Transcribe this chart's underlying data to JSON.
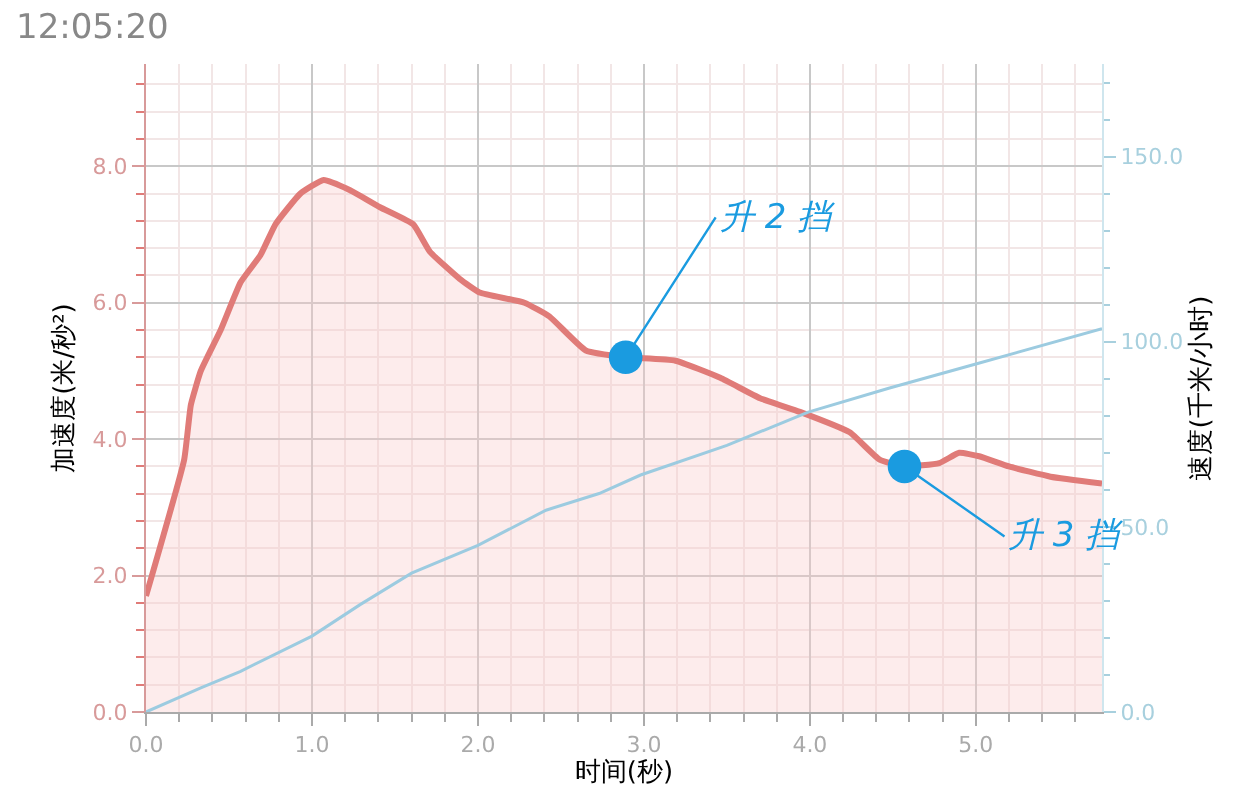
{
  "chart_data": {
    "type": "area",
    "xlabel": "时间(秒)",
    "ylabel": "加速度(米/秒²)",
    "y2label": "速度(千米/小时)",
    "xlim": [
      0,
      5.76
    ],
    "xticks": [
      {
        "value": 0,
        "label": "0.0"
      },
      {
        "value": 1,
        "label": "1.0"
      },
      {
        "value": 2,
        "label": "2.0"
      },
      {
        "value": 3,
        "label": "3.0"
      },
      {
        "value": 4,
        "label": "4.0"
      },
      {
        "value": 5,
        "label": "5.0"
      }
    ],
    "ylim": [
      0,
      9.5
    ],
    "yticks": [
      {
        "value": 0,
        "label": "0.0"
      },
      {
        "value": 2,
        "label": "2.0"
      },
      {
        "value": 4,
        "label": "4.0"
      },
      {
        "value": 6,
        "label": "6.0"
      },
      {
        "value": 8,
        "label": "8.0"
      }
    ],
    "y2lim": [
      0,
      175
    ],
    "y2ticks": [
      {
        "value": 0,
        "label": "0.0"
      },
      {
        "value": 50,
        "label": "50.0"
      },
      {
        "value": 100,
        "label": "100.0"
      },
      {
        "value": 150,
        "label": "150.0"
      }
    ],
    "grid": true,
    "marker": "none",
    "line_style": "solid",
    "series": [
      {
        "color": "#e07b78",
        "x": [
          0,
          0.23,
          0.27,
          0.33,
          0.45,
          0.57,
          0.69,
          0.78,
          0.93,
          1.07,
          1.23,
          1.41,
          1.61,
          1.71,
          1.89,
          2.01,
          2.28,
          2.43,
          2.65,
          2.89,
          3.19,
          3.46,
          3.7,
          3.94,
          4.24,
          4.42,
          4.57,
          4.78,
          4.9,
          5.02,
          5.2,
          5.45,
          5.76
        ],
        "values": [
          1.7,
          3.7,
          4.5,
          5.0,
          5.6,
          6.3,
          6.7,
          7.15,
          7.6,
          7.8,
          7.65,
          7.4,
          7.15,
          6.75,
          6.35,
          6.15,
          6.0,
          5.8,
          5.3,
          5.2,
          5.15,
          4.9,
          4.6,
          4.4,
          4.1,
          3.7,
          3.6,
          3.65,
          3.8,
          3.75,
          3.6,
          3.45,
          3.35
        ]
      },
      {
        "type": "line",
        "axis": "y2",
        "color": "#9ccbe0",
        "x": [
          0,
          0.33,
          0.57,
          1.0,
          1.29,
          1.6,
          2.0,
          2.41,
          2.73,
          2.98,
          3.5,
          3.99,
          4.48,
          5.0,
          5.76
        ],
        "values": [
          0,
          6.5,
          11,
          20.5,
          29,
          37.5,
          45,
          54.5,
          59,
          64,
          72,
          81,
          87.5,
          94,
          103.5
        ]
      }
    ],
    "annotations": [
      "12:05:20",
      {
        "text": "升 2 挡",
        "x": 2.89,
        "y": 5.2
      },
      {
        "text": "升 3 挡",
        "x": 4.57,
        "y": 3.6
      }
    ]
  }
}
